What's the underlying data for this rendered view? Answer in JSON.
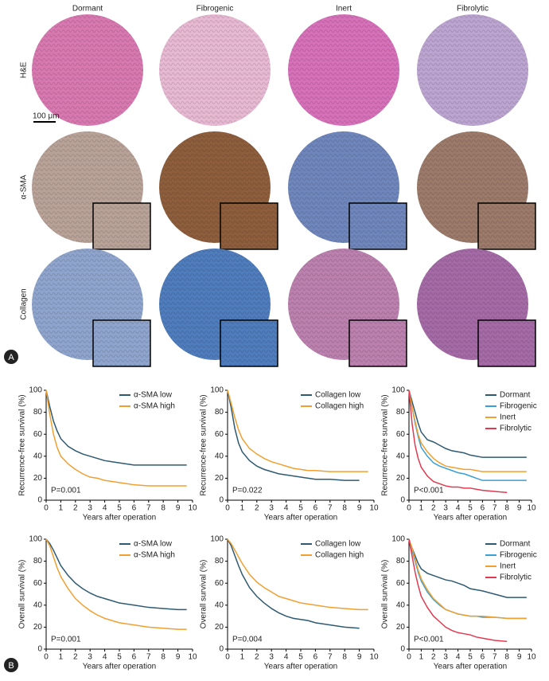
{
  "panel_a": {
    "column_labels": [
      "Dormant",
      "Fibrogenic",
      "Inert",
      "Fibrolytic"
    ],
    "row_labels": [
      "H&E",
      "α-SMA",
      "Collagen"
    ],
    "scale_bar": "100 μm",
    "label": "A"
  },
  "panel_b_label": "B",
  "chart_data": [
    {
      "type": "line",
      "x_label": "Years after operation",
      "y_label": "Recurrence-free survival (%)",
      "annotation": "P=0.001",
      "legend": "upper right",
      "x": [
        0,
        0.25,
        0.5,
        0.75,
        1,
        1.5,
        2,
        2.5,
        3,
        3.5,
        4,
        4.5,
        5,
        5.5,
        6,
        7,
        8,
        9,
        9.6
      ],
      "series": [
        {
          "name": "α-SMA low",
          "color": "#2e5a72",
          "values": [
            100,
            85,
            72,
            63,
            56,
            49,
            45,
            42,
            40,
            38,
            36,
            35,
            34,
            33,
            32,
            32,
            32,
            32,
            32
          ]
        },
        {
          "name": "α-SMA high",
          "color": "#f0a030",
          "values": [
            100,
            78,
            60,
            48,
            40,
            33,
            28,
            24,
            21,
            20,
            18,
            17,
            16,
            15,
            14,
            13,
            13,
            13,
            13
          ]
        }
      ],
      "xlim": [
        0,
        10
      ],
      "ylim": [
        0,
        100
      ],
      "xticks": [
        0,
        1,
        2,
        3,
        4,
        5,
        6,
        7,
        8,
        9,
        10
      ],
      "yticks": [
        0,
        20,
        40,
        60,
        80,
        100
      ]
    },
    {
      "type": "line",
      "x_label": "Years after operation",
      "y_label": "Recurrence-free survival (%)",
      "annotation": "P=0.022",
      "legend": "upper right",
      "x": [
        0,
        0.25,
        0.5,
        0.75,
        1,
        1.5,
        2,
        2.5,
        3,
        3.5,
        4,
        4.5,
        5,
        5.5,
        6,
        7,
        8,
        9,
        9.6
      ],
      "series": [
        {
          "name": "Collagen low",
          "color": "#2e5a72",
          "values": [
            100,
            84,
            65,
            52,
            44,
            36,
            31,
            28,
            26,
            24,
            23,
            22,
            21,
            20,
            19,
            19,
            18,
            18,
            null
          ]
        },
        {
          "name": "Collagen high",
          "color": "#f0a030",
          "values": [
            100,
            88,
            75,
            64,
            56,
            47,
            42,
            38,
            35,
            33,
            31,
            29,
            28,
            27,
            27,
            26,
            26,
            26,
            26
          ]
        }
      ],
      "xlim": [
        0,
        10
      ],
      "ylim": [
        0,
        100
      ],
      "xticks": [
        0,
        1,
        2,
        3,
        4,
        5,
        6,
        7,
        8,
        9,
        10
      ],
      "yticks": [
        0,
        20,
        40,
        60,
        80,
        100
      ]
    },
    {
      "type": "line",
      "x_label": "Years after operation",
      "y_label": "Recurrence-free survival (%)",
      "annotation": "P<0.001",
      "legend": "upper right",
      "x": [
        0,
        0.25,
        0.5,
        0.75,
        1,
        1.5,
        2,
        2.5,
        3,
        3.5,
        4,
        4.5,
        5,
        5.5,
        6,
        7,
        8,
        9,
        9.6
      ],
      "series": [
        {
          "name": "Dormant",
          "color": "#2e5a72",
          "values": [
            100,
            90,
            80,
            70,
            62,
            55,
            53,
            50,
            47,
            45,
            44,
            43,
            41,
            40,
            39,
            39,
            39,
            39,
            39
          ]
        },
        {
          "name": "Fibrogenic",
          "color": "#3a9fd5",
          "values": [
            100,
            85,
            70,
            58,
            48,
            40,
            34,
            31,
            29,
            27,
            25,
            24,
            22,
            20,
            18,
            18,
            18,
            18,
            18
          ]
        },
        {
          "name": "Inert",
          "color": "#f0a030",
          "values": [
            100,
            85,
            72,
            60,
            52,
            44,
            38,
            34,
            31,
            30,
            29,
            28,
            28,
            27,
            26,
            26,
            26,
            26,
            26
          ]
        },
        {
          "name": "Fibrolytic",
          "color": "#e03a50",
          "values": [
            100,
            70,
            50,
            38,
            30,
            22,
            17,
            15,
            13,
            12,
            12,
            11,
            11,
            10,
            9,
            8,
            7,
            null,
            null
          ]
        }
      ],
      "xlim": [
        0,
        10
      ],
      "ylim": [
        0,
        100
      ],
      "xticks": [
        0,
        1,
        2,
        3,
        4,
        5,
        6,
        7,
        8,
        9,
        10
      ],
      "yticks": [
        0,
        20,
        40,
        60,
        80,
        100
      ]
    },
    {
      "type": "line",
      "x_label": "Years after operation",
      "y_label": "Overall survival (%)",
      "annotation": "P=0.001",
      "legend": "upper right",
      "x": [
        0,
        0.25,
        0.5,
        0.75,
        1,
        1.5,
        2,
        2.5,
        3,
        3.5,
        4,
        4.5,
        5,
        5.5,
        6,
        7,
        8,
        9,
        9.6
      ],
      "series": [
        {
          "name": "α-SMA low",
          "color": "#2e5a72",
          "values": [
            100,
            96,
            90,
            83,
            76,
            67,
            60,
            55,
            51,
            48,
            46,
            44,
            42,
            41,
            40,
            38,
            37,
            36,
            36
          ]
        },
        {
          "name": "α-SMA high",
          "color": "#f0a030",
          "values": [
            100,
            94,
            84,
            74,
            66,
            55,
            46,
            40,
            35,
            31,
            28,
            26,
            24,
            23,
            22,
            20,
            19,
            18,
            18
          ]
        }
      ],
      "xlim": [
        0,
        10
      ],
      "ylim": [
        0,
        100
      ],
      "xticks": [
        0,
        1,
        2,
        3,
        4,
        5,
        6,
        7,
        8,
        9,
        10
      ],
      "yticks": [
        0,
        20,
        40,
        60,
        80,
        100
      ]
    },
    {
      "type": "line",
      "x_label": "Years after operation",
      "y_label": "Overall survival (%)",
      "annotation": "P=0.004",
      "legend": "upper right",
      "x": [
        0,
        0.25,
        0.5,
        0.75,
        1,
        1.5,
        2,
        2.5,
        3,
        3.5,
        4,
        4.5,
        5,
        5.5,
        6,
        7,
        8,
        9,
        9.6
      ],
      "series": [
        {
          "name": "Collagen low",
          "color": "#2e5a72",
          "values": [
            100,
            94,
            85,
            76,
            68,
            56,
            48,
            42,
            37,
            33,
            30,
            28,
            27,
            26,
            24,
            22,
            20,
            19,
            null
          ]
        },
        {
          "name": "Collagen high",
          "color": "#f0a030",
          "values": [
            100,
            96,
            90,
            84,
            78,
            68,
            61,
            56,
            52,
            48,
            46,
            44,
            42,
            41,
            40,
            38,
            37,
            36,
            36
          ]
        }
      ],
      "xlim": [
        0,
        10
      ],
      "ylim": [
        0,
        100
      ],
      "xticks": [
        0,
        1,
        2,
        3,
        4,
        5,
        6,
        7,
        8,
        9,
        10
      ],
      "yticks": [
        0,
        20,
        40,
        60,
        80,
        100
      ]
    },
    {
      "type": "line",
      "x_label": "Years after operation",
      "y_label": "Overall survival (%)",
      "annotation": "P<0.001",
      "legend": "upper right",
      "x": [
        0,
        0.25,
        0.5,
        0.75,
        1,
        1.5,
        2,
        2.5,
        3,
        3.5,
        4,
        4.5,
        5,
        5.5,
        6,
        7,
        8,
        9,
        9.6
      ],
      "series": [
        {
          "name": "Dormant",
          "color": "#2e5a72",
          "values": [
            100,
            92,
            85,
            78,
            73,
            69,
            67,
            65,
            63,
            62,
            60,
            58,
            55,
            54,
            53,
            50,
            47,
            47,
            47
          ]
        },
        {
          "name": "Fibrogenic",
          "color": "#3a9fd5",
          "values": [
            100,
            90,
            80,
            70,
            62,
            52,
            45,
            40,
            36,
            34,
            32,
            31,
            30,
            30,
            29,
            29,
            28,
            28,
            28
          ]
        },
        {
          "name": "Inert",
          "color": "#f0a030",
          "values": [
            100,
            92,
            82,
            72,
            64,
            54,
            46,
            41,
            36,
            34,
            32,
            31,
            30,
            30,
            30,
            29,
            28,
            28,
            28
          ]
        },
        {
          "name": "Fibrolytic",
          "color": "#e03a50",
          "values": [
            100,
            85,
            70,
            58,
            48,
            38,
            30,
            25,
            20,
            17,
            15,
            14,
            13,
            11,
            10,
            8,
            7,
            null,
            null
          ]
        }
      ],
      "xlim": [
        0,
        10
      ],
      "ylim": [
        0,
        100
      ],
      "xticks": [
        0,
        1,
        2,
        3,
        4,
        5,
        6,
        7,
        8,
        9,
        10
      ],
      "yticks": [
        0,
        20,
        40,
        60,
        80,
        100
      ]
    }
  ]
}
